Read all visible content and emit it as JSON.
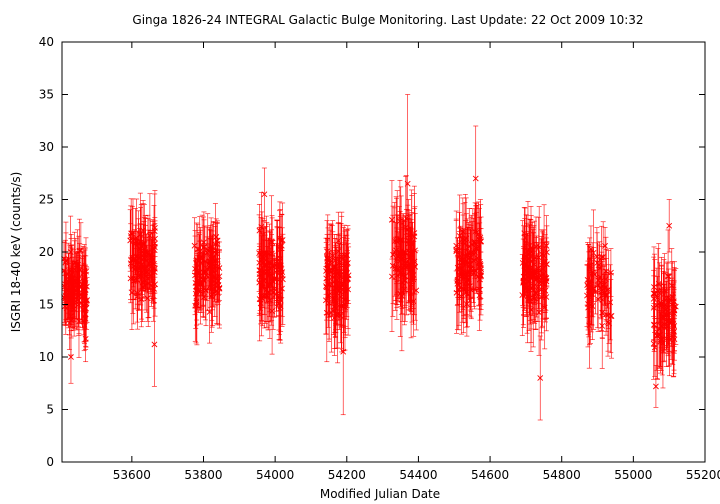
{
  "chart_data": {
    "type": "scatter",
    "title": "Ginga 1826-24   INTEGRAL Galactic Bulge Monitoring.  Last Update: 22 Oct 2009 10:32",
    "xlabel": "Modified Julian Date",
    "ylabel": "ISGRI 18-40 keV (counts/s)",
    "xlim": [
      53405,
      55200
    ],
    "ylim": [
      0,
      40
    ],
    "x_ticks": [
      53600,
      53800,
      54000,
      54200,
      54400,
      54600,
      54800,
      55000,
      55200
    ],
    "y_ticks": [
      0,
      5,
      10,
      15,
      20,
      25,
      30,
      35,
      40
    ],
    "grid": false,
    "marker": "x",
    "error_bars": true,
    "color": "#ff0000",
    "clusters": [
      {
        "x_range": [
          53410,
          53475
        ],
        "y_center": 16.5,
        "y_spread": 2.8,
        "err": 2.5,
        "count": 110
      },
      {
        "x_range": [
          53595,
          53665
        ],
        "y_center": 19.0,
        "y_spread": 2.8,
        "err": 2.8,
        "count": 100
      },
      {
        "x_range": [
          53775,
          53845
        ],
        "y_center": 18.0,
        "y_spread": 2.5,
        "err": 2.6,
        "count": 100
      },
      {
        "x_range": [
          53955,
          54025
        ],
        "y_center": 18.0,
        "y_spread": 2.7,
        "err": 2.9,
        "count": 100
      },
      {
        "x_range": [
          54140,
          54205
        ],
        "y_center": 17.5,
        "y_spread": 2.8,
        "err": 3.2,
        "count": 100
      },
      {
        "x_range": [
          54325,
          54395
        ],
        "y_center": 19.5,
        "y_spread": 2.9,
        "err": 3.5,
        "count": 90
      },
      {
        "x_range": [
          54505,
          54575
        ],
        "y_center": 19.0,
        "y_spread": 2.9,
        "err": 3.0,
        "count": 100
      },
      {
        "x_range": [
          54690,
          54760
        ],
        "y_center": 18.0,
        "y_spread": 2.9,
        "err": 3.3,
        "count": 100
      },
      {
        "x_range": [
          54870,
          54940
        ],
        "y_center": 16.5,
        "y_spread": 2.5,
        "err": 2.8,
        "count": 70
      },
      {
        "x_range": [
          55055,
          55120
        ],
        "y_center": 14.5,
        "y_spread": 2.6,
        "err": 3.0,
        "count": 80
      }
    ],
    "highlights": [
      {
        "x": 54370,
        "y": 26.5,
        "err": 8.5
      },
      {
        "x": 54560,
        "y": 27.0,
        "err": 5.0
      },
      {
        "x": 53970,
        "y": 25.5,
        "err": 2.5
      },
      {
        "x": 54740,
        "y": 8.0,
        "err": 4.0
      },
      {
        "x": 54190,
        "y": 10.5,
        "err": 6.0
      },
      {
        "x": 55063,
        "y": 7.2,
        "err": 2.0
      },
      {
        "x": 55100,
        "y": 22.5,
        "err": 2.5
      },
      {
        "x": 53663,
        "y": 11.2,
        "err": 4.0
      },
      {
        "x": 53430,
        "y": 10.0,
        "err": 2.5
      }
    ]
  }
}
